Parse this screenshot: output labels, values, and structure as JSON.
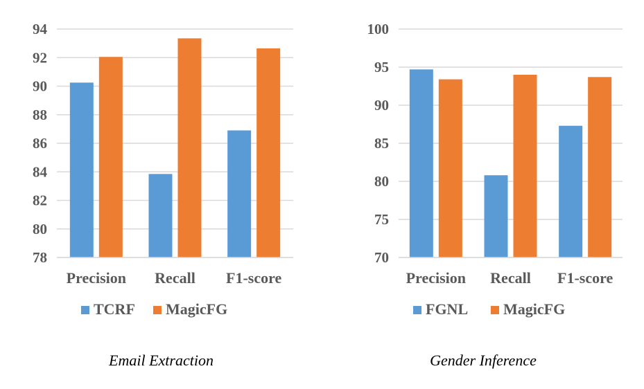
{
  "chart_data": [
    {
      "type": "bar",
      "caption": "Email Extraction",
      "categories": [
        "Precision",
        "Recall",
        "F1-score"
      ],
      "series": [
        {
          "name": "TCRF",
          "values": [
            90.25,
            83.85,
            86.9
          ],
          "color": "#5B9BD5"
        },
        {
          "name": "MagicFG",
          "values": [
            92.05,
            93.35,
            92.65
          ],
          "color": "#ED7D31"
        }
      ],
      "ylim": [
        78,
        94
      ],
      "yticks": [
        78,
        80,
        82,
        84,
        86,
        88,
        90,
        92,
        94
      ],
      "grid": true,
      "legend": "bottom"
    },
    {
      "type": "bar",
      "caption": "Gender Inference",
      "categories": [
        "Precision",
        "Recall",
        "F1-score"
      ],
      "series": [
        {
          "name": "FGNL",
          "values": [
            94.7,
            80.8,
            87.3
          ],
          "color": "#5B9BD5"
        },
        {
          "name": "MagicFG",
          "values": [
            93.4,
            94.0,
            93.7
          ],
          "color": "#ED7D31"
        }
      ],
      "ylim": [
        70,
        100
      ],
      "yticks": [
        70,
        75,
        80,
        85,
        90,
        95,
        100
      ],
      "grid": true,
      "legend": "bottom"
    }
  ]
}
